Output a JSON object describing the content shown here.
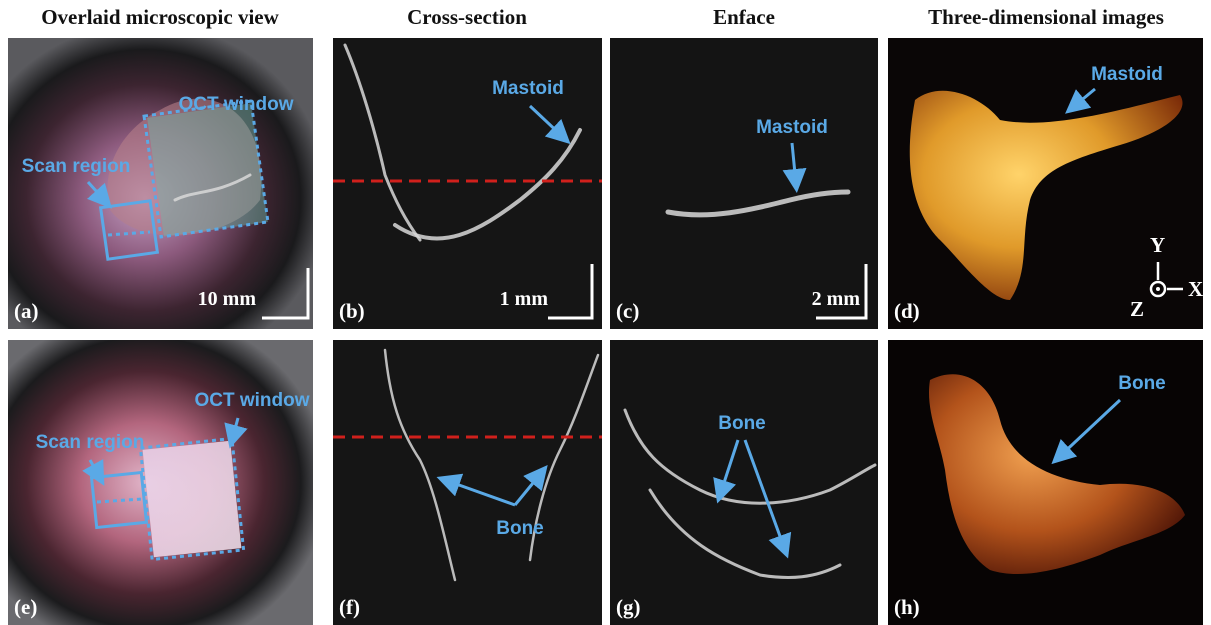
{
  "headers": [
    "Overlaid microscopic view",
    "Cross-section",
    "Enface",
    "Three-dimensional images"
  ],
  "panels": [
    {
      "label": "(a)",
      "annotations": [
        "OCT window",
        "Scan region"
      ],
      "scale_bar": "10 mm"
    },
    {
      "label": "(b)",
      "annotations": [
        "Mastoid"
      ],
      "scale_bar": "1 mm"
    },
    {
      "label": "(c)",
      "annotations": [
        "Mastoid"
      ],
      "scale_bar": "2 mm"
    },
    {
      "label": "(d)",
      "annotations": [
        "Mastoid"
      ],
      "axes": [
        "Y",
        "Z",
        "X"
      ]
    },
    {
      "label": "(e)",
      "annotations": [
        "OCT window",
        "Scan region"
      ]
    },
    {
      "label": "(f)",
      "annotations": [
        "Bone"
      ]
    },
    {
      "label": "(g)",
      "annotations": [
        "Bone"
      ]
    },
    {
      "label": "(h)",
      "annotations": [
        "Bone"
      ]
    }
  ]
}
